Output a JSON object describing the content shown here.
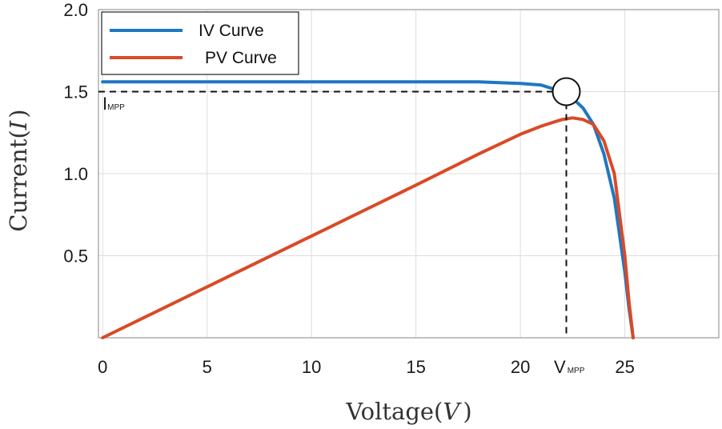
{
  "chart_data": {
    "type": "line",
    "title": "",
    "xlabel_main": "Voltage(",
    "xlabel_var": "V",
    "xlabel_close": ")",
    "ylabel_main": "Current(",
    "ylabel_var": "I",
    "ylabel_close": ")",
    "xlim": [
      -0.2,
      29.5
    ],
    "ylim": [
      0,
      2.0
    ],
    "grid": true,
    "legend_position": "top-left",
    "x_ticks": [
      {
        "value": 0,
        "label": "0"
      },
      {
        "value": 5,
        "label": "5"
      },
      {
        "value": 10,
        "label": "10"
      },
      {
        "value": 15,
        "label": "15"
      },
      {
        "value": 20,
        "label": "20"
      },
      {
        "value": 25,
        "label": "25"
      }
    ],
    "x_gridlines": [
      0,
      5,
      10,
      15,
      20,
      25
    ],
    "y_ticks": [
      {
        "value": 2.0,
        "label": "2.0"
      },
      {
        "value": 1.5,
        "label": "1.5"
      },
      {
        "value": 1.0,
        "label": "1.0"
      },
      {
        "value": 0.5,
        "label": "0.5"
      }
    ],
    "series": [
      {
        "name": "IV Curve",
        "color": "#1f77c4",
        "x": [
          0,
          5,
          10,
          15,
          18,
          20,
          21,
          21.5,
          22,
          22.5,
          23,
          23.5,
          24,
          24.5,
          25,
          25.2,
          25.4
        ],
        "y": [
          1.56,
          1.56,
          1.56,
          1.56,
          1.56,
          1.55,
          1.54,
          1.52,
          1.5,
          1.46,
          1.4,
          1.3,
          1.12,
          0.85,
          0.4,
          0.18,
          0.0
        ]
      },
      {
        "name": "PV Curve",
        "color": "#d94a26",
        "x": [
          0,
          5,
          10,
          15,
          18,
          20,
          21,
          21.5,
          22,
          22.5,
          23,
          23.5,
          24,
          24.5,
          25,
          25.2,
          25.4
        ],
        "y": [
          0.0,
          0.31,
          0.62,
          0.93,
          1.12,
          1.24,
          1.29,
          1.31,
          1.33,
          1.34,
          1.33,
          1.3,
          1.2,
          1.0,
          0.5,
          0.22,
          0.0
        ]
      }
    ],
    "mpp": {
      "v": 22.2,
      "i": 1.5,
      "v_label_main": "V",
      "v_label_sub": "MPP",
      "i_label_main": "I",
      "i_label_sub": "MPP"
    }
  }
}
